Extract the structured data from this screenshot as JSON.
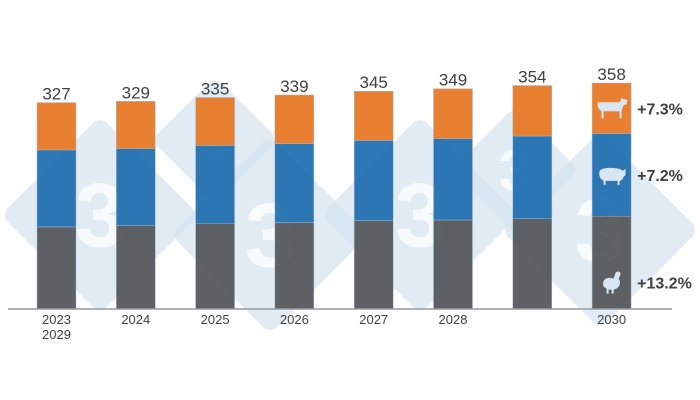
{
  "chart_data": {
    "type": "bar",
    "stacked": true,
    "categories": [
      "2023",
      "2024",
      "2025",
      "2026",
      "2027",
      "2028",
      "2029",
      "2030"
    ],
    "tick_labels": [
      [
        "2023",
        "2029"
      ],
      [
        "2024"
      ],
      [
        "2025"
      ],
      [
        "2026"
      ],
      [
        "2027"
      ],
      [
        "2028"
      ],
      [],
      [
        "2030"
      ]
    ],
    "series": [
      {
        "icon": "chicken-icon",
        "color": "#53565A",
        "values": [
          130,
          132,
          135,
          137,
          140,
          141,
          143,
          147
        ]
      },
      {
        "icon": "pig-icon",
        "color": "#1F6EB0",
        "values": [
          122,
          122,
          124,
          125,
          127,
          129,
          131,
          131
        ]
      },
      {
        "icon": "cow-icon",
        "color": "#E87722",
        "values": [
          75,
          75,
          76,
          77,
          78,
          79,
          80,
          80
        ]
      }
    ],
    "totals": [
      "327",
      "329",
      "335",
      "339",
      "345",
      "349",
      "354",
      "358"
    ],
    "growth_labels": [
      "+13.2%",
      "+7.2%",
      "+7.3%"
    ],
    "ylim": [
      0,
      358
    ],
    "grid": false,
    "legend": "none",
    "watermark": "3"
  }
}
